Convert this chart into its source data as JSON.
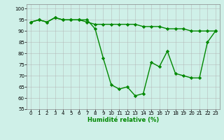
{
  "x": [
    0,
    1,
    2,
    3,
    4,
    5,
    6,
    7,
    8,
    9,
    10,
    11,
    12,
    13,
    14,
    15,
    16,
    17,
    18,
    19,
    20,
    21,
    22,
    23
  ],
  "line1": [
    94,
    95,
    94,
    96,
    95,
    95,
    95,
    94,
    93,
    93,
    93,
    93,
    93,
    93,
    92,
    92,
    92,
    91,
    91,
    91,
    90,
    90,
    90,
    90
  ],
  "line2": [
    94,
    95,
    94,
    96,
    95,
    95,
    95,
    95,
    91,
    78,
    66,
    64,
    65,
    61,
    62,
    76,
    74,
    81,
    71,
    70,
    69,
    69,
    85,
    90
  ],
  "bg_color": "#cff0e8",
  "grid_color": "#b0b0b0",
  "line_color": "#008800",
  "xlabel": "Humidité relative (%)",
  "xlabel_color": "#008800",
  "ylim": [
    55,
    102
  ],
  "yticks": [
    55,
    60,
    65,
    70,
    75,
    80,
    85,
    90,
    95,
    100
  ],
  "xlim": [
    -0.5,
    23.5
  ],
  "xticks": [
    0,
    1,
    2,
    3,
    4,
    5,
    6,
    7,
    8,
    9,
    10,
    11,
    12,
    13,
    14,
    15,
    16,
    17,
    18,
    19,
    20,
    21,
    22,
    23
  ],
  "marker": "D",
  "markersize": 2.2,
  "linewidth": 1.0,
  "tick_fontsize": 5.0,
  "xlabel_fontsize": 6.0
}
